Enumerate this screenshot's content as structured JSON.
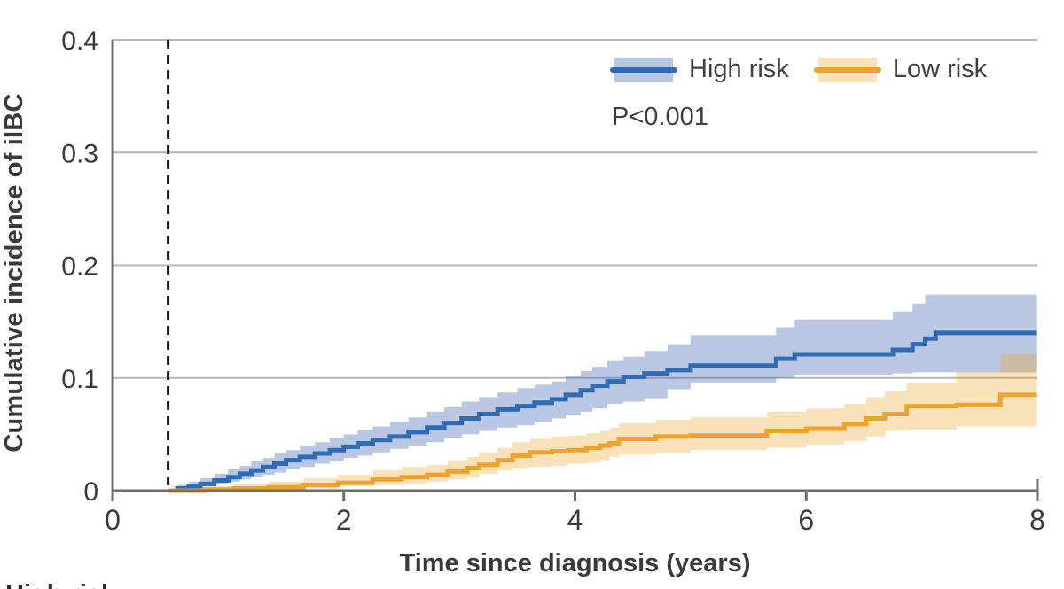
{
  "chart_data": {
    "type": "line",
    "subtype": "kaplan-meier-cumulative-incidence-steps",
    "title": "",
    "xlabel": "Time since diagnosis (years)",
    "ylabel": "Cumulative incidence of iIBC",
    "xlim": [
      0,
      8
    ],
    "ylim": [
      0,
      0.4
    ],
    "xticks": [
      0,
      2,
      4,
      6,
      8
    ],
    "xtick_labels": [
      "0",
      "2",
      "4",
      "6",
      "8"
    ],
    "yticks": [
      0,
      0.1,
      0.2,
      0.3,
      0.4
    ],
    "ytick_labels": [
      "0",
      "0.1",
      "0.2",
      "0.3",
      "0.4"
    ],
    "grid": "horizontal-gridlines-at-yticks",
    "legend_position": "top-right-inside",
    "annotation": {
      "p_value": "P<0.001"
    },
    "reference_line": {
      "x": 0.48,
      "style": "dashed-vertical",
      "color": "#1a1a1a"
    },
    "series": [
      {
        "name": "High risk",
        "color": "#2f6cb3",
        "band_color": "rgba(85,119,187,0.41)",
        "x": [
          0.48,
          0.56,
          0.66,
          0.76,
          0.88,
          1.0,
          1.1,
          1.2,
          1.3,
          1.4,
          1.5,
          1.62,
          1.75,
          1.88,
          2.0,
          2.12,
          2.25,
          2.4,
          2.56,
          2.72,
          2.87,
          3.02,
          3.17,
          3.33,
          3.5,
          3.65,
          3.8,
          3.92,
          4.05,
          4.15,
          4.28,
          4.42,
          4.6,
          4.8,
          5.0,
          5.74,
          5.9,
          6.75,
          6.92,
          7.03,
          7.12,
          7.99
        ],
        "y": [
          0,
          0.002,
          0.004,
          0.006,
          0.009,
          0.012,
          0.015,
          0.018,
          0.021,
          0.024,
          0.027,
          0.03,
          0.033,
          0.036,
          0.039,
          0.042,
          0.045,
          0.048,
          0.052,
          0.056,
          0.06,
          0.064,
          0.068,
          0.072,
          0.075,
          0.078,
          0.081,
          0.085,
          0.089,
          0.093,
          0.097,
          0.101,
          0.104,
          0.107,
          0.111,
          0.117,
          0.121,
          0.125,
          0.13,
          0.135,
          0.14,
          0.14
        ],
        "upper": [
          0.002,
          0.005,
          0.008,
          0.011,
          0.015,
          0.019,
          0.022,
          0.026,
          0.029,
          0.033,
          0.036,
          0.04,
          0.043,
          0.047,
          0.05,
          0.054,
          0.057,
          0.061,
          0.065,
          0.07,
          0.074,
          0.079,
          0.083,
          0.087,
          0.091,
          0.094,
          0.097,
          0.102,
          0.106,
          0.11,
          0.115,
          0.119,
          0.124,
          0.13,
          0.138,
          0.145,
          0.152,
          0.159,
          0.166,
          0.174,
          0.174,
          0.174
        ],
        "lower": [
          0,
          0,
          0.001,
          0.002,
          0.004,
          0.006,
          0.008,
          0.01,
          0.012,
          0.014,
          0.016,
          0.019,
          0.021,
          0.024,
          0.026,
          0.029,
          0.031,
          0.034,
          0.037,
          0.04,
          0.043,
          0.047,
          0.05,
          0.053,
          0.056,
          0.058,
          0.061,
          0.064,
          0.067,
          0.07,
          0.073,
          0.077,
          0.079,
          0.082,
          0.09,
          0.096,
          0.1,
          0.103,
          0.104,
          0.105,
          0.105,
          0.105
        ],
        "final_value": 0.14
      },
      {
        "name": "Low risk",
        "color": "#eda42f",
        "band_color": "rgba(236,164,45,0.33)",
        "x": [
          0.48,
          0.8,
          1.05,
          1.35,
          1.65,
          1.95,
          2.25,
          2.5,
          2.72,
          2.9,
          3.07,
          3.17,
          3.33,
          3.46,
          3.61,
          3.8,
          3.94,
          4.1,
          4.22,
          4.3,
          4.38,
          4.7,
          5.0,
          5.66,
          6.0,
          6.33,
          6.52,
          6.68,
          6.87,
          7.3,
          7.68,
          7.99
        ],
        "y": [
          0,
          0.001,
          0.002,
          0.003,
          0.005,
          0.007,
          0.01,
          0.012,
          0.014,
          0.017,
          0.02,
          0.023,
          0.027,
          0.031,
          0.034,
          0.035,
          0.036,
          0.038,
          0.04,
          0.042,
          0.046,
          0.048,
          0.049,
          0.053,
          0.055,
          0.059,
          0.064,
          0.068,
          0.075,
          0.076,
          0.085,
          0.085
        ],
        "upper": [
          0.002,
          0.004,
          0.006,
          0.008,
          0.011,
          0.014,
          0.018,
          0.021,
          0.023,
          0.027,
          0.03,
          0.034,
          0.038,
          0.043,
          0.046,
          0.048,
          0.049,
          0.051,
          0.053,
          0.056,
          0.06,
          0.063,
          0.065,
          0.07,
          0.073,
          0.077,
          0.083,
          0.088,
          0.096,
          0.105,
          0.121,
          0.121
        ],
        "lower": [
          0,
          0,
          0,
          0,
          0.001,
          0.002,
          0.004,
          0.005,
          0.006,
          0.008,
          0.01,
          0.012,
          0.015,
          0.018,
          0.02,
          0.021,
          0.022,
          0.024,
          0.025,
          0.027,
          0.03,
          0.032,
          0.033,
          0.036,
          0.038,
          0.041,
          0.044,
          0.048,
          0.053,
          0.054,
          0.057,
          0.057
        ],
        "final_value": 0.085
      }
    ]
  },
  "legend": {
    "high_risk_label": "High risk",
    "low_risk_label": "Low risk"
  },
  "annotation": {
    "p_value": "P<0.001"
  },
  "axes": {
    "x_title": "Time since diagnosis (years)",
    "y_title": "Cumulative incidence of iIBC"
  },
  "footer": {
    "cropped_row_label": "High risk"
  },
  "colors": {
    "high_risk_line": "#2f6cb3",
    "high_risk_band": "rgba(85,119,187,0.41)",
    "low_risk_line": "#eda42f",
    "low_risk_band": "rgba(236,164,45,0.33)",
    "gridline": "#b5b5b5",
    "axis": "#6e6e6e",
    "text": "#3a3a3a",
    "dashed_reference": "#1a1a1a"
  }
}
